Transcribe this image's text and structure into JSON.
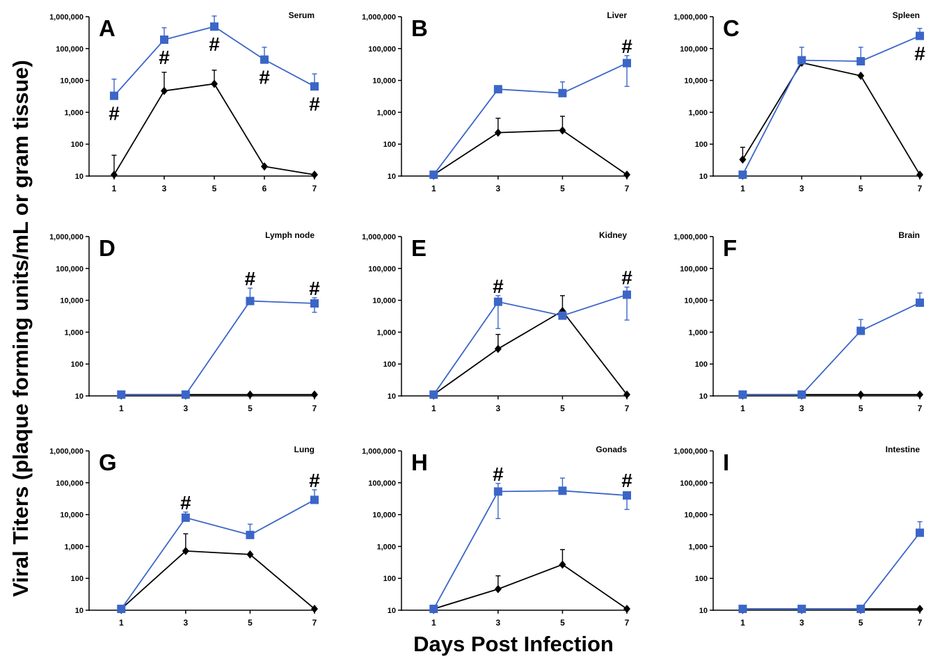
{
  "figure": {
    "ylabel": "Viral Titers (plaque forming units/mL or gram tissue)",
    "xlabel": "Days Post Infection",
    "colors": {
      "blue": "#3b66c8",
      "black": "#000000"
    }
  },
  "chart_data": [
    {
      "type": "line",
      "letter": "A",
      "title": "Serum",
      "x": [
        "1",
        "3",
        "5",
        "6",
        "7"
      ],
      "yscale": "log",
      "ylim": [
        10,
        1000000
      ],
      "yticks": [
        "10",
        "100",
        "1,000",
        "10,000",
        "100,000",
        "1,000,000"
      ],
      "series": [
        {
          "color": "#3b66c8",
          "marker": "square",
          "values": [
            3300,
            190000,
            490000,
            45000,
            6500
          ],
          "errors": [
            11000,
            450000,
            1050000,
            110000,
            16000
          ]
        },
        {
          "color": "#000000",
          "marker": "diamond",
          "values": [
            11,
            4700,
            7800,
            20,
            11
          ],
          "errors": [
            45,
            18000,
            21000,
            null,
            null
          ]
        }
      ],
      "hash": [
        {
          "i": 0,
          "pos": "below",
          "symbol": "#"
        },
        {
          "i": 1,
          "pos": "below",
          "symbol": "#"
        },
        {
          "i": 2,
          "pos": "below",
          "symbol": "#"
        },
        {
          "i": 3,
          "pos": "below",
          "symbol": "#"
        },
        {
          "i": 4,
          "pos": "below",
          "symbol": "#"
        }
      ]
    },
    {
      "type": "line",
      "letter": "B",
      "title": "Liver",
      "x": [
        "1",
        "3",
        "5",
        "7"
      ],
      "yscale": "log",
      "ylim": [
        10,
        1000000
      ],
      "yticks": [
        "10",
        "100",
        "1,000",
        "10,000",
        "100,000",
        "1,000,000"
      ],
      "series": [
        {
          "color": "#3b66c8",
          "marker": "square",
          "values": [
            11,
            5300,
            4000,
            35000
          ],
          "errors": [
            null,
            null,
            9000,
            60000
          ],
          "errors_low": [
            null,
            null,
            null,
            6500
          ]
        },
        {
          "color": "#000000",
          "marker": "diamond",
          "values": [
            11,
            230,
            270,
            11
          ],
          "errors": [
            null,
            650,
            750,
            null
          ]
        }
      ],
      "hash": [
        {
          "i": 3,
          "pos": "above",
          "symbol": "#"
        }
      ]
    },
    {
      "type": "line",
      "letter": "C",
      "title": "Spleen",
      "x": [
        "1",
        "3",
        "5",
        "7"
      ],
      "yscale": "log",
      "ylim": [
        10,
        1000000
      ],
      "yticks": [
        "10",
        "100",
        "1,000",
        "10,000",
        "100,000",
        "1,000,000"
      ],
      "series": [
        {
          "color": "#3b66c8",
          "marker": "square",
          "values": [
            11,
            43000,
            40000,
            250000
          ],
          "errors": [
            null,
            110000,
            110000,
            430000
          ]
        },
        {
          "color": "#000000",
          "marker": "diamond",
          "values": [
            33,
            36000,
            14000,
            11
          ],
          "errors": [
            80,
            null,
            null,
            null
          ]
        }
      ],
      "hash": [
        {
          "i": 3,
          "pos": "below",
          "symbol": "#"
        }
      ]
    },
    {
      "type": "line",
      "letter": "D",
      "title": "Lymph node",
      "x": [
        "1",
        "3",
        "5",
        "7"
      ],
      "yscale": "log",
      "ylim": [
        10,
        1000000
      ],
      "yticks": [
        "10",
        "100",
        "1,000",
        "10,000",
        "100,000",
        "1,000,000"
      ],
      "series": [
        {
          "color": "#3b66c8",
          "marker": "square",
          "values": [
            11,
            11,
            9500,
            8000
          ],
          "errors": [
            null,
            null,
            24000,
            12000
          ],
          "errors_low": [
            null,
            null,
            null,
            4200
          ]
        },
        {
          "color": "#000000",
          "marker": "diamond",
          "values": [
            11,
            11,
            11,
            11
          ],
          "errors": [
            null,
            null,
            null,
            null
          ]
        }
      ],
      "hash": [
        {
          "i": 2,
          "pos": "above",
          "symbol": "#"
        },
        {
          "i": 3,
          "pos": "above",
          "symbol": "#"
        }
      ]
    },
    {
      "type": "line",
      "letter": "E",
      "title": "Kidney",
      "x": [
        "1",
        "3",
        "5",
        "7"
      ],
      "yscale": "log",
      "ylim": [
        10,
        1000000
      ],
      "yticks": [
        "10",
        "100",
        "1,000",
        "10,000",
        "100,000",
        "1,000,000"
      ],
      "series": [
        {
          "color": "#3b66c8",
          "marker": "square",
          "values": [
            11,
            9000,
            3300,
            15000
          ],
          "errors": [
            null,
            14000,
            null,
            26000
          ],
          "errors_low": [
            null,
            1300,
            null,
            2400
          ]
        },
        {
          "color": "#000000",
          "marker": "diamond",
          "values": [
            11,
            300,
            4600,
            11
          ],
          "errors": [
            null,
            850,
            14000,
            null
          ]
        }
      ],
      "hash": [
        {
          "i": 1,
          "pos": "above",
          "symbol": "#"
        },
        {
          "i": 3,
          "pos": "above",
          "symbol": "#"
        }
      ]
    },
    {
      "type": "line",
      "letter": "F",
      "title": "Brain",
      "x": [
        "1",
        "3",
        "5",
        "7"
      ],
      "yscale": "log",
      "ylim": [
        10,
        1000000
      ],
      "yticks": [
        "10",
        "100",
        "1,000",
        "10,000",
        "100,000",
        "1,000,000"
      ],
      "series": [
        {
          "color": "#3b66c8",
          "marker": "square",
          "values": [
            11,
            11,
            1100,
            8400
          ],
          "errors": [
            null,
            null,
            2500,
            17000
          ]
        },
        {
          "color": "#000000",
          "marker": "diamond",
          "values": [
            11,
            11,
            11,
            11
          ],
          "errors": [
            null,
            null,
            null,
            null
          ]
        }
      ],
      "hash": []
    },
    {
      "type": "line",
      "letter": "G",
      "title": "Lung",
      "x": [
        "1",
        "3",
        "5",
        "7"
      ],
      "yscale": "log",
      "ylim": [
        10,
        1000000
      ],
      "yticks": [
        "10",
        "100",
        "1,000",
        "10,000",
        "100,000",
        "1,000,000"
      ],
      "series": [
        {
          "color": "#3b66c8",
          "marker": "square",
          "values": [
            11,
            8000,
            2300,
            29000
          ],
          "errors": [
            null,
            12000,
            5000,
            60000
          ]
        },
        {
          "color": "#000000",
          "marker": "diamond",
          "values": [
            11,
            720,
            560,
            11
          ],
          "errors": [
            null,
            2500,
            null,
            null
          ]
        }
      ],
      "hash": [
        {
          "i": 1,
          "pos": "above",
          "symbol": "#"
        },
        {
          "i": 3,
          "pos": "above",
          "symbol": "#"
        }
      ]
    },
    {
      "type": "line",
      "letter": "H",
      "title": "Gonads",
      "x": [
        "1",
        "3",
        "5",
        "7"
      ],
      "yscale": "log",
      "ylim": [
        10,
        1000000
      ],
      "yticks": [
        "10",
        "100",
        "1,000",
        "10,000",
        "100,000",
        "1,000,000"
      ],
      "series": [
        {
          "color": "#3b66c8",
          "marker": "square",
          "values": [
            11,
            53000,
            56000,
            40000
          ],
          "errors": [
            null,
            95000,
            140000,
            null
          ],
          "errors_low": [
            null,
            7500,
            null,
            14500
          ]
        },
        {
          "color": "#000000",
          "marker": "diamond",
          "values": [
            11,
            46,
            270,
            11
          ],
          "errors": [
            null,
            120,
            800,
            null
          ]
        }
      ],
      "hash": [
        {
          "i": 1,
          "pos": "above",
          "symbol": "#"
        },
        {
          "i": 3,
          "pos": "above",
          "symbol": "#"
        }
      ]
    },
    {
      "type": "line",
      "letter": "I",
      "title": "Intestine",
      "x": [
        "1",
        "3",
        "5",
        "7"
      ],
      "yscale": "log",
      "ylim": [
        10,
        1000000
      ],
      "yticks": [
        "10",
        "100",
        "1,000",
        "10,000",
        "100,000",
        "1,000,000"
      ],
      "series": [
        {
          "color": "#3b66c8",
          "marker": "square",
          "values": [
            11,
            11,
            11,
            2700
          ],
          "errors": [
            null,
            null,
            null,
            6000
          ]
        },
        {
          "color": "#000000",
          "marker": "diamond",
          "values": [
            11,
            11,
            11,
            11
          ],
          "errors": [
            null,
            null,
            null,
            null
          ]
        }
      ],
      "hash": []
    }
  ]
}
